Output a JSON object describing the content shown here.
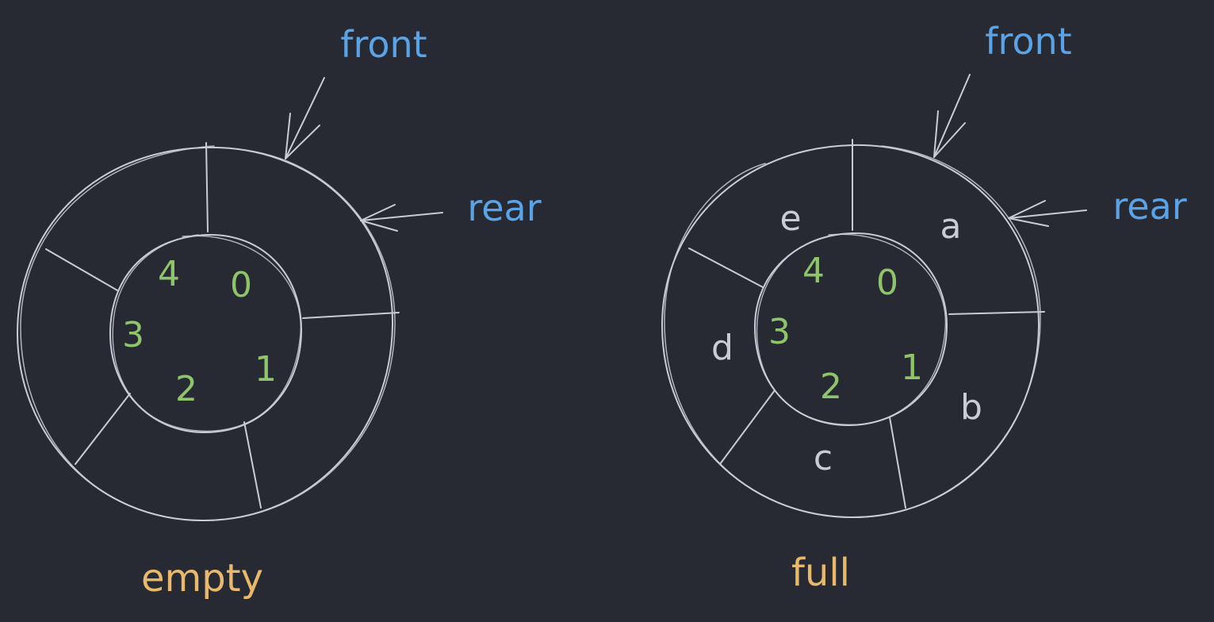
{
  "colors": {
    "background": "#272a33",
    "ring_stroke": "#c9ccd3",
    "index_label": "#8fc56a",
    "pointer_label": "#5aa3e6",
    "caption": "#e8b96b",
    "element_label": "#c9ccd3"
  },
  "diagrams": [
    {
      "caption": "empty",
      "front_label": "front",
      "rear_label": "rear",
      "slot_indices": [
        "0",
        "1",
        "2",
        "3",
        "4"
      ],
      "slot_values": []
    },
    {
      "caption": "full",
      "front_label": "front",
      "rear_label": "rear",
      "slot_indices": [
        "0",
        "1",
        "2",
        "3",
        "4"
      ],
      "slot_values": [
        "a",
        "b",
        "c",
        "d",
        "e"
      ]
    }
  ]
}
